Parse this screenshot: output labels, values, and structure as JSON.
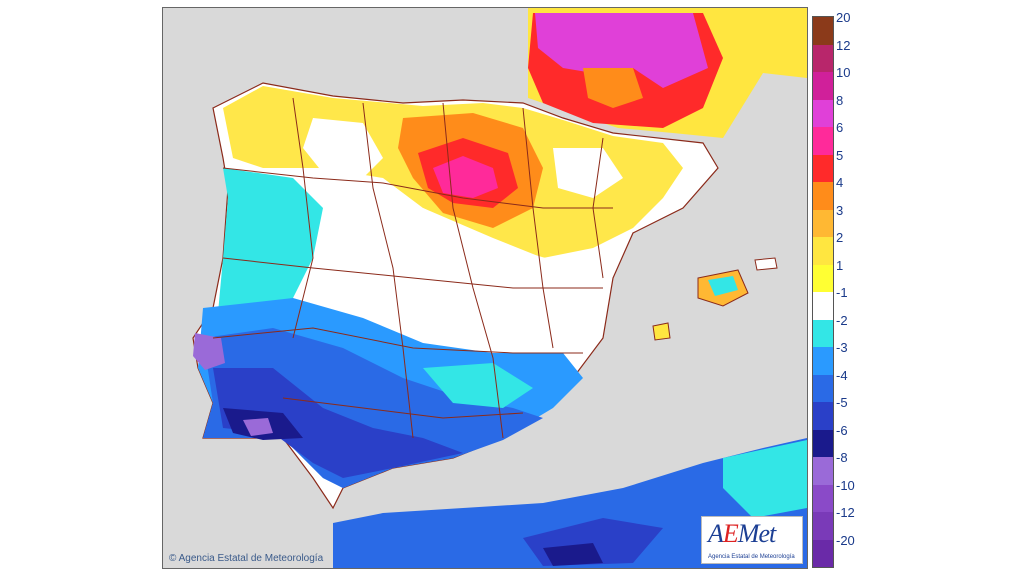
{
  "map": {
    "copyright": "© Agencia Estatal de Meteorología",
    "logo_text": "AEMet",
    "logo_subtitle": "Agencia Estatal de Meteorología"
  },
  "legend": {
    "labels": [
      "20",
      "12",
      "10",
      "8",
      "6",
      "5",
      "4",
      "3",
      "2",
      "1",
      "-1",
      "-2",
      "-3",
      "-4",
      "-5",
      "-6",
      "-8",
      "-10",
      "-12",
      "-20"
    ],
    "colors": [
      "#8b3a1a",
      "#b8266b",
      "#d0209a",
      "#e040d8",
      "#ff2a9a",
      "#ff2a2a",
      "#ff8c1a",
      "#ffb833",
      "#ffe640",
      "#ffff33",
      "#ffffff",
      "#33e6e6",
      "#2a9aff",
      "#2a6ae6",
      "#2a40c8",
      "#1a1a8c",
      "#9a6ad8",
      "#8a4ac8",
      "#7a3ab8",
      "#6a2aa8"
    ]
  },
  "colors": {
    "sea": "#d9d9d9",
    "borders": "#8b2a1a"
  }
}
